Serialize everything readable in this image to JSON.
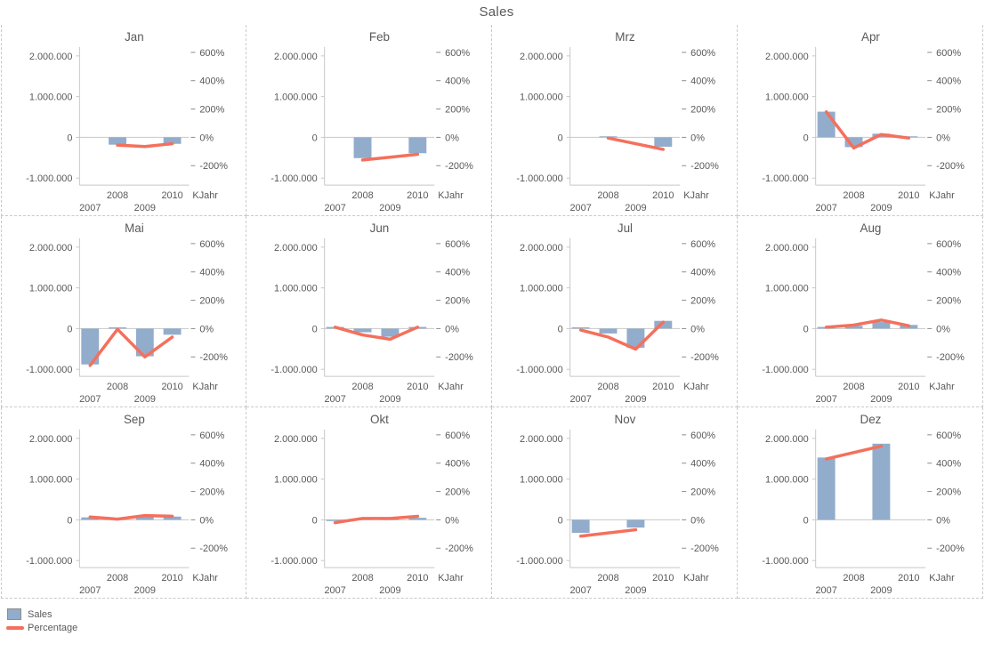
{
  "title": "Sales",
  "legend": {
    "sales_label": "Sales",
    "percentage_label": "Percentage"
  },
  "colors": {
    "bar": "#92accc",
    "line": "#f4705c",
    "axis": "#c8c8c8",
    "tick": "#8c8c8c",
    "text": "#595959"
  },
  "chart_data": {
    "type": "bar",
    "layout": "trellis-3x4",
    "title": "Sales",
    "xlabel": "KJahr",
    "x": [
      2007,
      2008,
      2009,
      2010
    ],
    "x_tick_labels_upper": [
      "2008",
      "2010"
    ],
    "x_tick_labels_lower": [
      "2007",
      "2009"
    ],
    "left_axis": {
      "tick_labels": [
        "2.000.000",
        "1.000.000",
        "0",
        "-1.000.000"
      ],
      "tick_values": [
        2000000,
        1000000,
        0,
        -1000000
      ],
      "series": "Sales"
    },
    "right_axis": {
      "tick_labels": [
        "600%",
        "400%",
        "200%",
        "0%",
        "-200%"
      ],
      "tick_values": [
        600,
        400,
        200,
        0,
        -200
      ],
      "series": "Percentage"
    },
    "legend_position": "bottom-left",
    "series_names": [
      "Sales",
      "Percentage"
    ],
    "panels": [
      {
        "month": "Jan",
        "sales": [
          null,
          -180000,
          null,
          -160000
        ],
        "percentage": [
          null,
          -55,
          -65,
          -45
        ]
      },
      {
        "month": "Feb",
        "sales": [
          null,
          -510000,
          null,
          -390000
        ],
        "percentage": [
          null,
          -160,
          -140,
          -120
        ]
      },
      {
        "month": "Mrz",
        "sales": [
          null,
          25000,
          null,
          -230000
        ],
        "percentage": [
          null,
          -5,
          -45,
          -85
        ]
      },
      {
        "month": "Apr",
        "sales": [
          630000,
          -240000,
          90000,
          25000
        ],
        "percentage": [
          180,
          -75,
          20,
          -5
        ]
      },
      {
        "month": "Mai",
        "sales": [
          -880000,
          30000,
          -680000,
          -150000
        ],
        "percentage": [
          -260,
          -5,
          -200,
          -60
        ]
      },
      {
        "month": "Jun",
        "sales": [
          40000,
          -90000,
          -200000,
          40000
        ],
        "percentage": [
          10,
          -45,
          -75,
          10
        ]
      },
      {
        "month": "Jul",
        "sales": [
          30000,
          -120000,
          -470000,
          190000
        ],
        "percentage": [
          -10,
          -60,
          -145,
          45
        ]
      },
      {
        "month": "Aug",
        "sales": [
          40000,
          70000,
          160000,
          90000
        ],
        "percentage": [
          10,
          25,
          60,
          20
        ]
      },
      {
        "month": "Sep",
        "sales": [
          60000,
          40000,
          90000,
          80000
        ],
        "percentage": [
          20,
          5,
          30,
          25
        ]
      },
      {
        "month": "Okt",
        "sales": [
          -30000,
          20000,
          20000,
          50000
        ],
        "percentage": [
          -20,
          10,
          10,
          25
        ]
      },
      {
        "month": "Nov",
        "sales": [
          -320000,
          null,
          -190000,
          null
        ],
        "percentage": [
          -115,
          null,
          -70,
          null
        ]
      },
      {
        "month": "Dez",
        "sales": [
          1530000,
          null,
          1870000,
          null
        ],
        "percentage": [
          430,
          null,
          520,
          null
        ]
      }
    ]
  }
}
